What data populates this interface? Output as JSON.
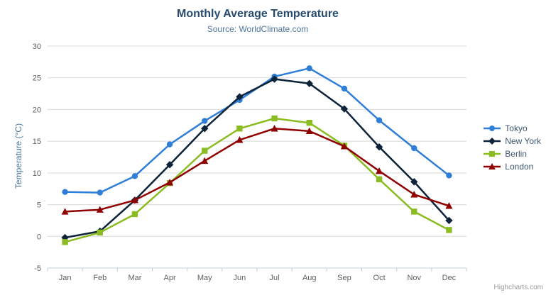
{
  "page": {
    "credits": "Highcharts.com"
  },
  "toolbar": {
    "context_menu_icon": "hamburger-icon"
  },
  "chart_data": {
    "type": "line",
    "title": "Monthly Average Temperature",
    "subtitle": "Source: WorldClimate.com",
    "xlabel": "",
    "ylabel": "Temperature (°C)",
    "categories": [
      "Jan",
      "Feb",
      "Mar",
      "Apr",
      "May",
      "Jun",
      "Jul",
      "Aug",
      "Sep",
      "Oct",
      "Nov",
      "Dec"
    ],
    "series": [
      {
        "name": "Tokyo",
        "color": "#2f7ed8",
        "marker": "circle",
        "values": [
          7.0,
          6.9,
          9.5,
          14.5,
          18.2,
          21.5,
          25.2,
          26.5,
          23.3,
          18.3,
          13.9,
          9.6
        ]
      },
      {
        "name": "New York",
        "color": "#0d233a",
        "marker": "diamond",
        "values": [
          -0.2,
          0.8,
          5.7,
          11.3,
          17.0,
          22.0,
          24.8,
          24.1,
          20.1,
          14.1,
          8.6,
          2.5
        ]
      },
      {
        "name": "Berlin",
        "color": "#8bbc21",
        "marker": "square",
        "values": [
          -0.9,
          0.6,
          3.5,
          8.4,
          13.5,
          17.0,
          18.6,
          17.9,
          14.3,
          9.0,
          3.9,
          1.0
        ]
      },
      {
        "name": "London",
        "color": "#910000",
        "marker": "triangle",
        "values": [
          3.9,
          4.2,
          5.7,
          8.5,
          11.9,
          15.2,
          17.0,
          16.6,
          14.2,
          10.3,
          6.6,
          4.8
        ]
      }
    ],
    "ylim": [
      -5,
      30
    ],
    "ytick_step": 5,
    "grid": true,
    "legend_position": "right",
    "colors": {
      "title": "#274b6d",
      "subtitle": "#4d759e",
      "axis_label": "#606060",
      "axis_title": "#4d759e",
      "grid_line": "#d8d8d8",
      "axis_line": "#c0d0e0",
      "legend_text": "#3e576f",
      "credits": "#999999"
    }
  }
}
